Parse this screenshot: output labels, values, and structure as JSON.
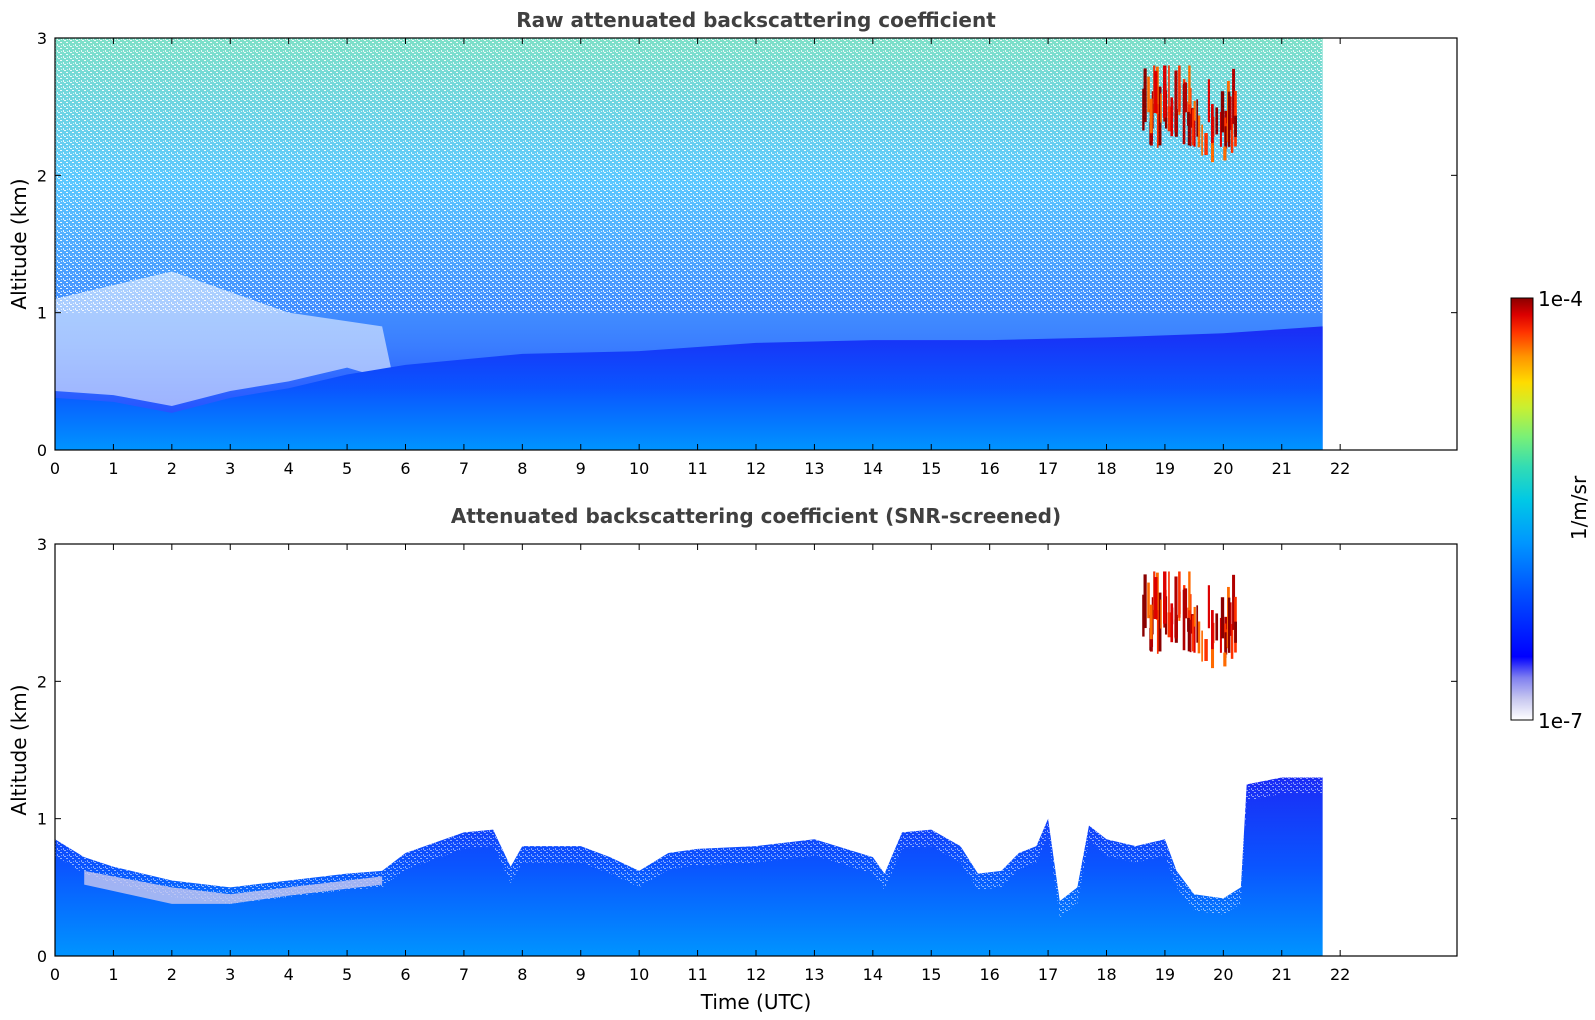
{
  "chart_data": [
    {
      "type": "heatmap",
      "title": "Raw attenuated backscattering coefficient",
      "xlabel": "",
      "ylabel": "Altitude (km)",
      "xlim": [
        0,
        24
      ],
      "ylim": [
        0,
        3
      ],
      "xticks": [
        "0",
        "1",
        "2",
        "3",
        "4",
        "5",
        "6",
        "7",
        "8",
        "9",
        "10",
        "11",
        "12",
        "13",
        "14",
        "15",
        "16",
        "17",
        "18",
        "19",
        "20",
        "21",
        "22"
      ],
      "yticks": [
        "0",
        "1",
        "2",
        "3"
      ],
      "data_end_hour": 21.7,
      "layers": [
        {
          "name": "boundary layer (dense)",
          "altitude_km_at_hour": [
            [
              0,
              0.38
            ],
            [
              1,
              0.35
            ],
            [
              2,
              0.27
            ],
            [
              3,
              0.38
            ],
            [
              4,
              0.45
            ],
            [
              5,
              0.55
            ],
            [
              6,
              0.62
            ],
            [
              8,
              0.7
            ],
            [
              10,
              0.72
            ],
            [
              12,
              0.78
            ],
            [
              14,
              0.8
            ],
            [
              16,
              0.8
            ],
            [
              18,
              0.82
            ],
            [
              20,
              0.85
            ],
            [
              21.7,
              0.9
            ]
          ]
        },
        {
          "name": "noise region",
          "altitude_km": [
            1.0,
            3.0
          ],
          "level": "1e-6 to 1e-5"
        },
        {
          "name": "cloud",
          "time_hours": [
            18.6,
            20.2
          ],
          "altitude_km": [
            2.1,
            2.8
          ],
          "level": "1e-4"
        }
      ]
    },
    {
      "type": "heatmap",
      "title": "Attenuated backscattering coefficient (SNR-screened)",
      "xlabel": "Time (UTC)",
      "ylabel": "Altitude (km)",
      "xlim": [
        0,
        24
      ],
      "ylim": [
        0,
        3
      ],
      "xticks": [
        "0",
        "1",
        "2",
        "3",
        "4",
        "5",
        "6",
        "7",
        "8",
        "9",
        "10",
        "11",
        "12",
        "13",
        "14",
        "15",
        "16",
        "17",
        "18",
        "19",
        "20",
        "21",
        "22"
      ],
      "yticks": [
        "0",
        "1",
        "2",
        "3"
      ],
      "data_end_hour": 21.7,
      "signal_top_km": [
        [
          0,
          0.85
        ],
        [
          0.5,
          0.72
        ],
        [
          1,
          0.65
        ],
        [
          2,
          0.55
        ],
        [
          3,
          0.5
        ],
        [
          4,
          0.55
        ],
        [
          5,
          0.6
        ],
        [
          5.6,
          0.62
        ],
        [
          6,
          0.75
        ],
        [
          7,
          0.9
        ],
        [
          7.5,
          0.92
        ],
        [
          7.8,
          0.65
        ],
        [
          8,
          0.8
        ],
        [
          9,
          0.8
        ],
        [
          9.5,
          0.72
        ],
        [
          10,
          0.62
        ],
        [
          10.5,
          0.75
        ],
        [
          11,
          0.78
        ],
        [
          12,
          0.8
        ],
        [
          13,
          0.85
        ],
        [
          14,
          0.72
        ],
        [
          14.2,
          0.6
        ],
        [
          14.5,
          0.9
        ],
        [
          15,
          0.92
        ],
        [
          15.5,
          0.8
        ],
        [
          15.8,
          0.6
        ],
        [
          16.2,
          0.62
        ],
        [
          16.5,
          0.75
        ],
        [
          16.8,
          0.8
        ],
        [
          17,
          1.0
        ],
        [
          17.2,
          0.4
        ],
        [
          17.5,
          0.5
        ],
        [
          17.7,
          0.95
        ],
        [
          18,
          0.85
        ],
        [
          18.5,
          0.8
        ],
        [
          19,
          0.85
        ],
        [
          19.2,
          0.62
        ],
        [
          19.5,
          0.45
        ],
        [
          20,
          0.42
        ],
        [
          20.3,
          0.5
        ],
        [
          20.4,
          1.25
        ],
        [
          21,
          1.3
        ],
        [
          21.7,
          1.3
        ]
      ],
      "clouds": [
        {
          "time_hours": [
            18.6,
            20.2
          ],
          "altitude_km": [
            2.1,
            2.8
          ]
        }
      ]
    }
  ],
  "colorbar": {
    "label": "1/m/sr",
    "max_label": "1e-4",
    "min_label": "1e-7",
    "colors": [
      "#ffffff",
      "#c8c8f0",
      "#8080f0",
      "#0000ff",
      "#0050ff",
      "#0096ff",
      "#00c8e6",
      "#32dcb4",
      "#78f078",
      "#c8f032",
      "#ffdc00",
      "#ff9600",
      "#ff3200",
      "#dc0000",
      "#8b0000"
    ]
  }
}
